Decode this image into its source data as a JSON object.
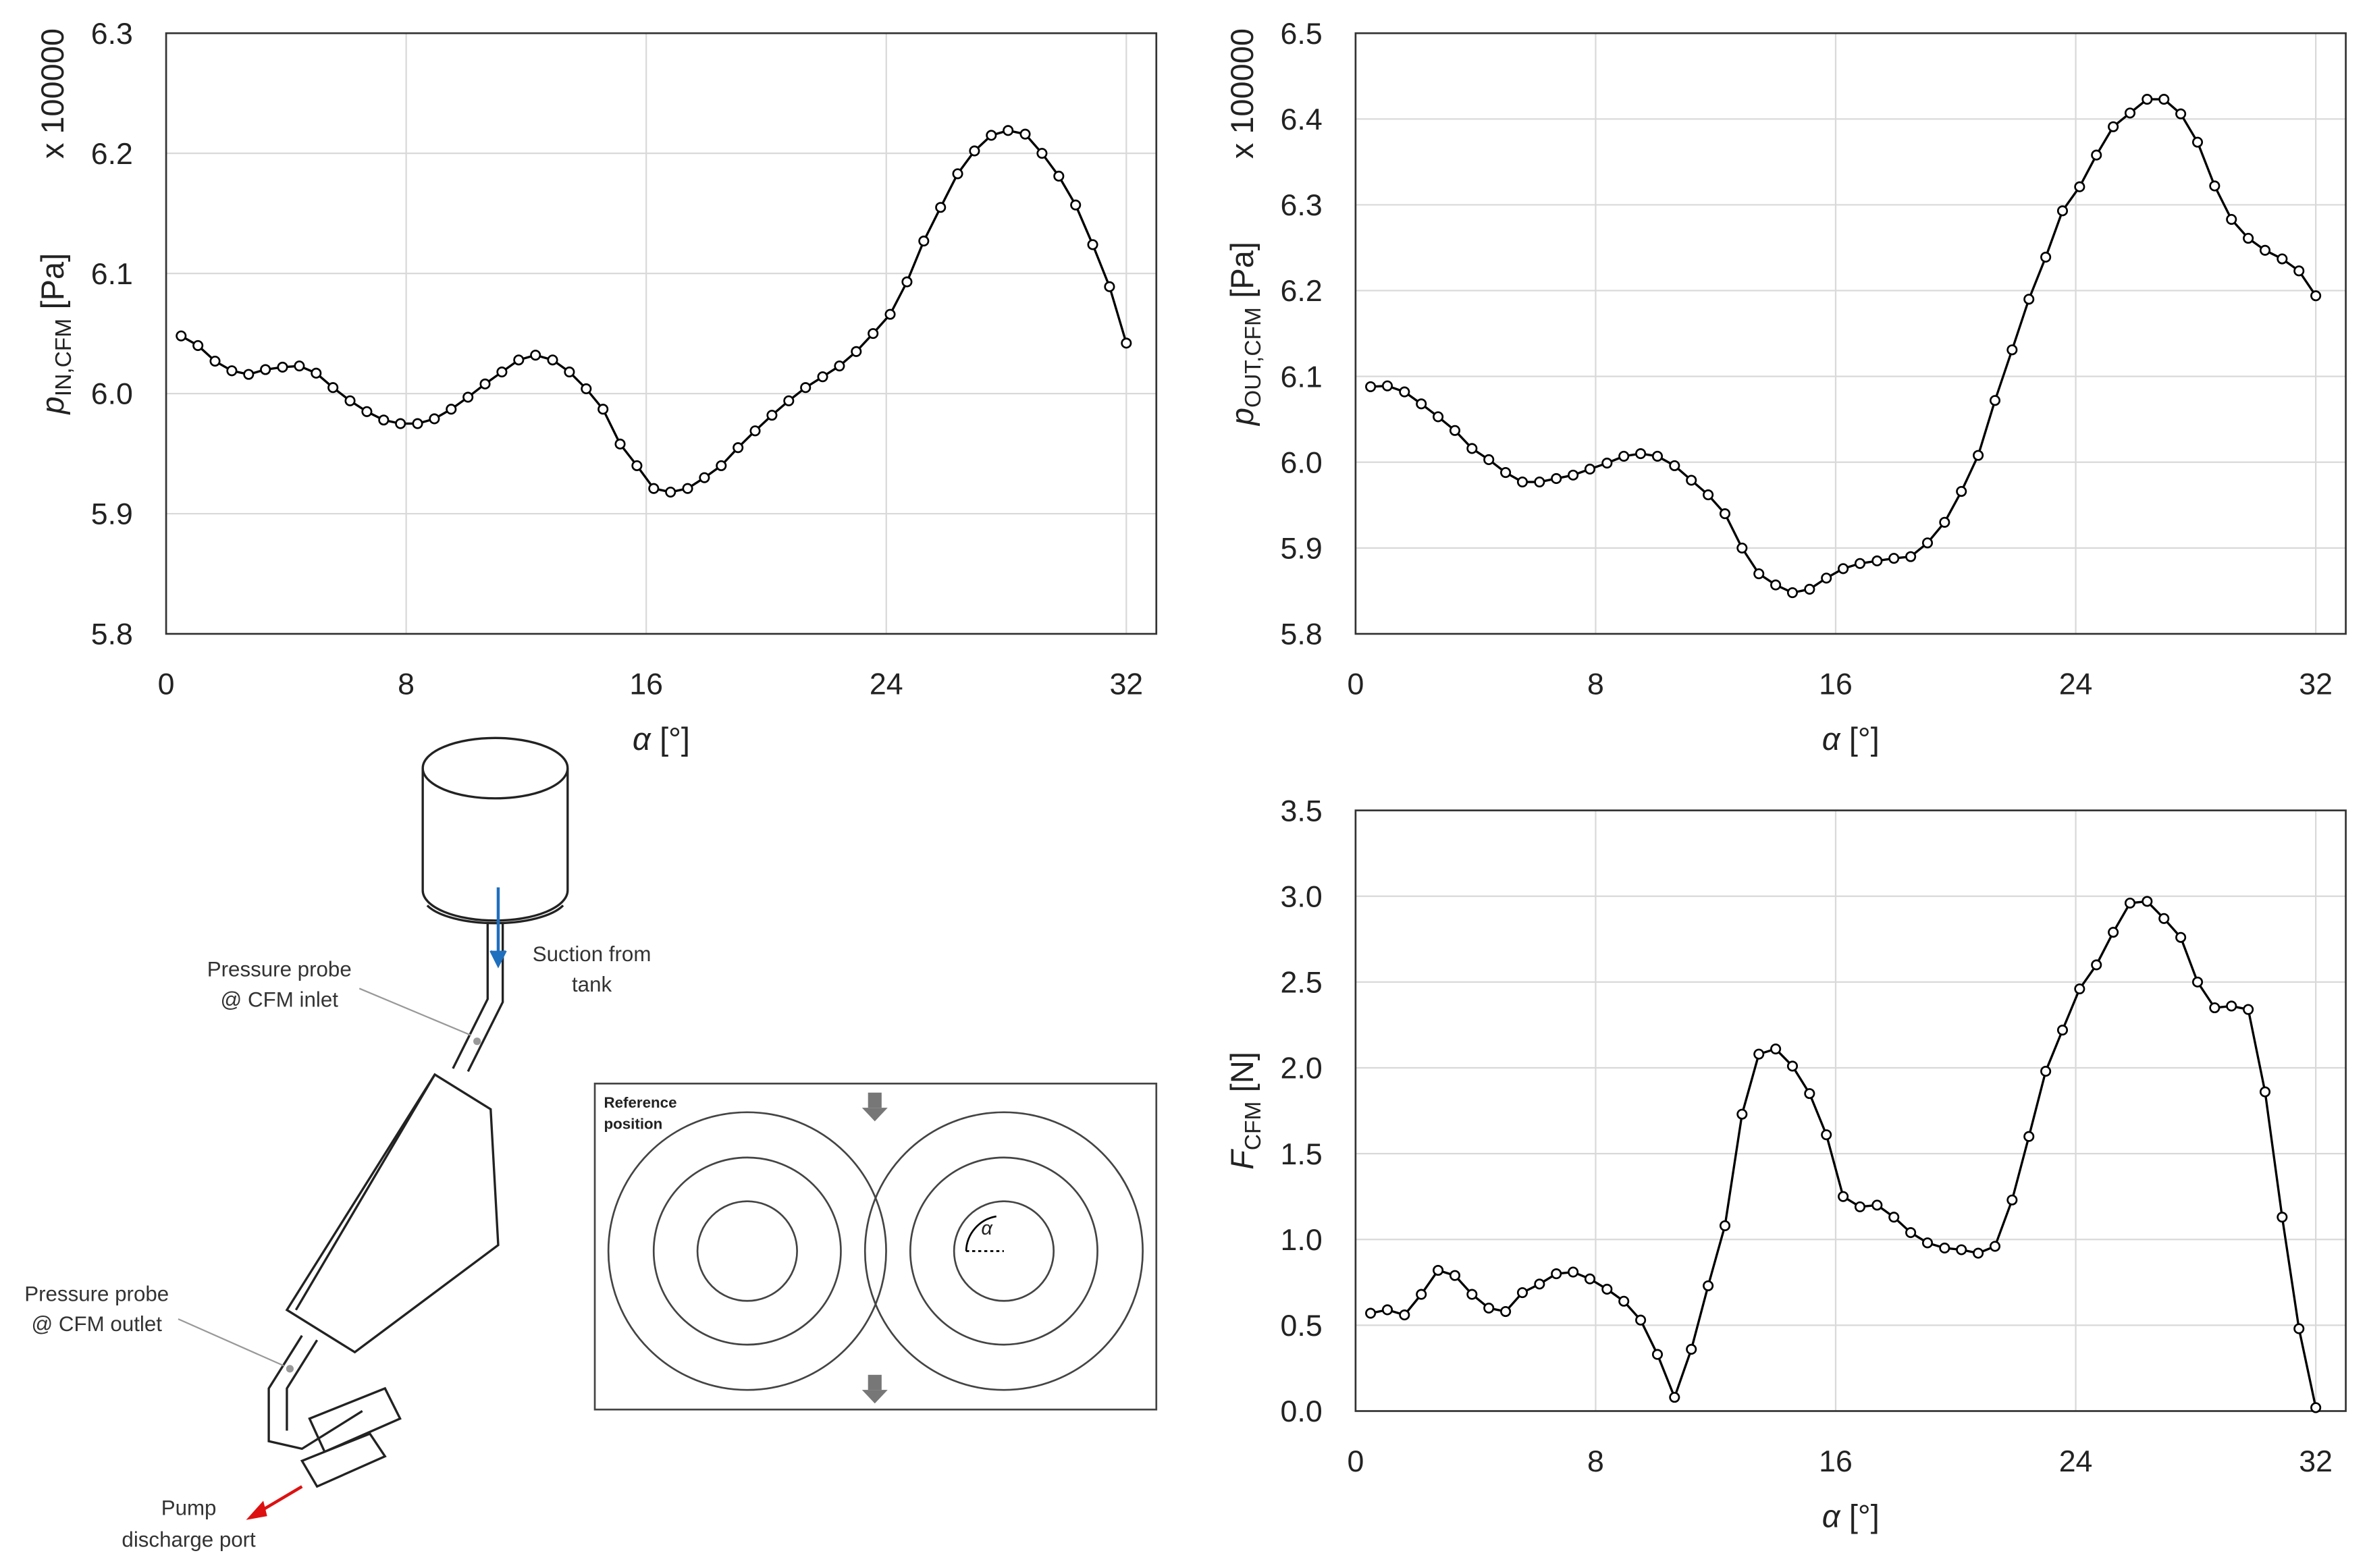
{
  "chart_data": [
    {
      "type": "line",
      "multiplier": "x 100000",
      "ylabel": {
        "symbol": "p",
        "subscript": "IN,CFM",
        "unit": "[Pa]"
      },
      "xlabel": {
        "symbol": "α",
        "unit": "[°]"
      },
      "xlim": [
        0,
        33
      ],
      "xticks": [
        0,
        8,
        16,
        24,
        32
      ],
      "ylim": [
        5.8,
        6.3
      ],
      "yticks": [
        {
          "value": 5.8,
          "label": "5.8"
        },
        {
          "value": 5.9,
          "label": "5.9"
        },
        {
          "value": 6.0,
          "label": "6.0"
        },
        {
          "value": 6.1,
          "label": "6.1"
        },
        {
          "value": 6.2,
          "label": "6.2"
        },
        {
          "value": 6.3,
          "label": "6.3"
        }
      ],
      "grid": true,
      "color": "#000000",
      "x": [
        0.5,
        1.06,
        1.63,
        2.19,
        2.75,
        3.31,
        3.88,
        4.44,
        5,
        5.56,
        6.13,
        6.69,
        7.25,
        7.81,
        8.38,
        8.94,
        9.5,
        10.06,
        10.63,
        11.19,
        11.75,
        12.31,
        12.88,
        13.44,
        14,
        14.56,
        15.13,
        15.69,
        16.25,
        16.81,
        17.38,
        17.94,
        18.5,
        19.06,
        19.63,
        20.19,
        20.75,
        21.31,
        21.88,
        22.44,
        23,
        23.56,
        24.13,
        24.69,
        25.25,
        25.81,
        26.38,
        26.94,
        27.5,
        28.06,
        28.63,
        29.19,
        29.75,
        30.31,
        30.88,
        31.44,
        32
      ],
      "values": [
        6.048,
        6.04,
        6.027,
        6.019,
        6.016,
        6.02,
        6.022,
        6.023,
        6.017,
        6.005,
        5.994,
        5.985,
        5.978,
        5.975,
        5.975,
        5.979,
        5.987,
        5.997,
        6.008,
        6.018,
        6.028,
        6.032,
        6.028,
        6.018,
        6.004,
        5.987,
        5.958,
        5.94,
        5.921,
        5.918,
        5.921,
        5.93,
        5.94,
        5.955,
        5.969,
        5.982,
        5.994,
        6.005,
        6.014,
        6.023,
        6.035,
        6.05,
        6.066,
        6.093,
        6.127,
        6.155,
        6.183,
        6.202,
        6.215,
        6.219,
        6.216,
        6.2,
        6.181,
        6.157,
        6.124,
        6.089,
        6.042
      ]
    },
    {
      "type": "line",
      "multiplier": "x 100000",
      "ylabel": {
        "symbol": "p",
        "subscript": "OUT,CFM",
        "unit": "[Pa]"
      },
      "xlabel": {
        "symbol": "α",
        "unit": "[°]"
      },
      "xlim": [
        0,
        33
      ],
      "xticks": [
        0,
        8,
        16,
        24,
        32
      ],
      "ylim": [
        5.8,
        6.5
      ],
      "yticks": [
        {
          "value": 5.8,
          "label": "5.8"
        },
        {
          "value": 5.9,
          "label": "5.9"
        },
        {
          "value": 6.0,
          "label": "6.0"
        },
        {
          "value": 6.1,
          "label": "6.1"
        },
        {
          "value": 6.2,
          "label": "6.2"
        },
        {
          "value": 6.3,
          "label": "6.3"
        },
        {
          "value": 6.4,
          "label": "6.4"
        },
        {
          "value": 6.5,
          "label": "6.5"
        }
      ],
      "grid": true,
      "color": "#000000",
      "x": [
        0.5,
        1.06,
        1.63,
        2.19,
        2.75,
        3.31,
        3.88,
        4.44,
        5,
        5.56,
        6.13,
        6.69,
        7.25,
        7.81,
        8.38,
        8.94,
        9.5,
        10.06,
        10.63,
        11.19,
        11.75,
        12.31,
        12.88,
        13.44,
        14,
        14.56,
        15.13,
        15.69,
        16.25,
        16.81,
        17.38,
        17.94,
        18.5,
        19.06,
        19.63,
        20.19,
        20.75,
        21.31,
        21.88,
        22.44,
        23,
        23.56,
        24.13,
        24.69,
        25.25,
        25.81,
        26.38,
        26.94,
        27.5,
        28.06,
        28.63,
        29.19,
        29.75,
        30.31,
        30.88,
        31.44,
        32
      ],
      "values": [
        6.088,
        6.089,
        6.082,
        6.068,
        6.053,
        6.037,
        6.016,
        6.003,
        5.988,
        5.977,
        5.977,
        5.981,
        5.985,
        5.992,
        5.999,
        6.007,
        6.01,
        6.007,
        5.996,
        5.979,
        5.962,
        5.94,
        5.9,
        5.87,
        5.857,
        5.848,
        5.852,
        5.865,
        5.876,
        5.882,
        5.885,
        5.888,
        5.89,
        5.906,
        5.93,
        5.966,
        6.008,
        6.072,
        6.131,
        6.19,
        6.239,
        6.293,
        6.321,
        6.358,
        6.391,
        6.407,
        6.423,
        6.423,
        6.406,
        6.373,
        6.322,
        6.283,
        6.261,
        6.247,
        6.237,
        6.223,
        6.194
      ]
    },
    {
      "type": "line",
      "ylabel": {
        "symbol": "F",
        "subscript": "CFM",
        "unit": "[N]"
      },
      "xlabel": {
        "symbol": "α",
        "unit": "[°]"
      },
      "xlim": [
        0,
        33
      ],
      "xticks": [
        0,
        8,
        16,
        24,
        32
      ],
      "ylim": [
        0,
        3.5
      ],
      "yticks": [
        {
          "value": 0,
          "label": "0.0"
        },
        {
          "value": 0.5,
          "label": "0.5"
        },
        {
          "value": 1,
          "label": "1.0"
        },
        {
          "value": 1.5,
          "label": "1.5"
        },
        {
          "value": 2,
          "label": "2.0"
        },
        {
          "value": 2.5,
          "label": "2.5"
        },
        {
          "value": 3,
          "label": "3.0"
        },
        {
          "value": 3.5,
          "label": "3.5"
        }
      ],
      "grid": true,
      "color": "#000000",
      "x": [
        0.5,
        1.06,
        1.63,
        2.19,
        2.75,
        3.31,
        3.88,
        4.44,
        5,
        5.56,
        6.13,
        6.69,
        7.25,
        7.81,
        8.38,
        8.94,
        9.5,
        10.06,
        10.63,
        11.19,
        11.75,
        12.31,
        12.88,
        13.44,
        14,
        14.56,
        15.13,
        15.69,
        16.25,
        16.81,
        17.38,
        17.94,
        18.5,
        19.06,
        19.63,
        20.19,
        20.75,
        21.31,
        21.88,
        22.44,
        23,
        23.56,
        24.13,
        24.69,
        25.25,
        25.81,
        26.38,
        26.94,
        27.5,
        28.06,
        28.63,
        29.19,
        29.75,
        30.31,
        30.88,
        31.44,
        32
      ],
      "values": [
        0.57,
        0.59,
        0.56,
        0.68,
        0.82,
        0.79,
        0.68,
        0.6,
        0.58,
        0.69,
        0.74,
        0.8,
        0.81,
        0.77,
        0.71,
        0.64,
        0.53,
        0.33,
        0.08,
        0.36,
        0.73,
        1.08,
        1.73,
        2.08,
        2.11,
        2.01,
        1.85,
        1.61,
        1.25,
        1.19,
        1.2,
        1.13,
        1.04,
        0.98,
        0.95,
        0.94,
        0.92,
        0.96,
        1.23,
        1.6,
        1.98,
        2.22,
        2.46,
        2.6,
        2.79,
        2.96,
        2.97,
        2.87,
        2.76,
        2.5,
        2.35,
        2.36,
        2.34,
        1.86,
        1.13,
        0.48,
        0.02
      ]
    }
  ],
  "diagram": {
    "inlet_probe": [
      "Pressure probe",
      "@ CFM inlet"
    ],
    "suction": [
      "Suction from",
      "tank"
    ],
    "outlet_probe": [
      "Pressure probe",
      "@ CFM outlet"
    ],
    "discharge": [
      "Pump",
      "discharge port"
    ],
    "reference": [
      "Reference",
      "position"
    ],
    "angle": "α"
  }
}
